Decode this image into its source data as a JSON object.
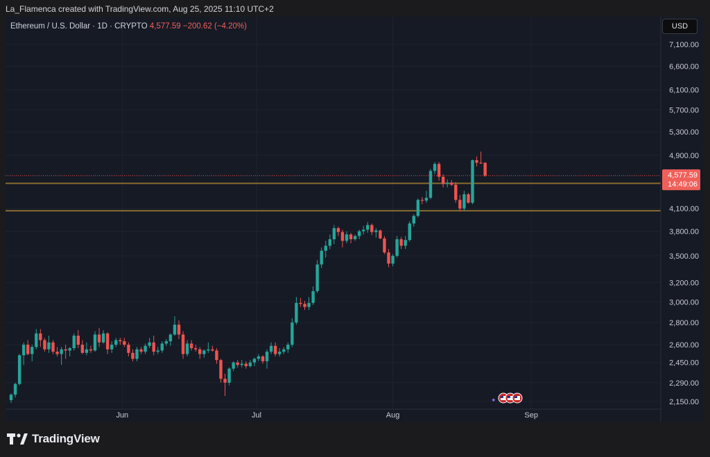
{
  "header": {
    "author_line": "La_Flamenca created with TradingView.com, Aug 25, 2025 11:10 UTC+2"
  },
  "legend": {
    "symbol": "Ethereum / U.S. Dollar · 1D · CRYPTO",
    "price": "4,577.59",
    "change": "−200.62 (−4.20%)"
  },
  "currency_button": "USD",
  "brand": {
    "name": "TradingView"
  },
  "colors": {
    "up": "#26a69a",
    "down": "#ef5350",
    "background": "#161a25",
    "level_line": "#8a6d2f",
    "price_tag": "#f0605a"
  },
  "chart_data": {
    "type": "candlestick",
    "symbol": "ETHUSD",
    "timeframe": "1D",
    "y_axis": {
      "scale": "log",
      "ticks": [
        2150,
        2290,
        2450,
        2600,
        2800,
        3000,
        3200,
        3500,
        3800,
        4100,
        4577.59,
        4900,
        5300,
        5700,
        6100,
        6600,
        7100
      ],
      "tick_labels": [
        "2,150.00",
        "2,290.00",
        "2,450.00",
        "2,600.00",
        "2,800.00",
        "3,000.00",
        "3,200.00",
        "3,500.00",
        "3,800.00",
        "4,100.00",
        "4,577.59",
        "4,900.00",
        "5,300.00",
        "5,700.00",
        "6,100.00",
        "6,600.00",
        "7,100.00"
      ]
    },
    "x_axis": {
      "labels": [
        "Jun",
        "Jul",
        "Aug",
        "Sep"
      ]
    },
    "current_price": {
      "value": 4577.59,
      "label": "4,577.59",
      "countdown": "14:49:06"
    },
    "horizontal_levels": [
      4460,
      4070
    ],
    "candles": [
      {
        "o": 2160,
        "h": 2210,
        "l": 2140,
        "c": 2200
      },
      {
        "o": 2200,
        "h": 2290,
        "l": 2180,
        "c": 2280
      },
      {
        "o": 2280,
        "h": 2520,
        "l": 2270,
        "c": 2510
      },
      {
        "o": 2510,
        "h": 2620,
        "l": 2430,
        "c": 2600
      },
      {
        "o": 2600,
        "h": 2640,
        "l": 2510,
        "c": 2520
      },
      {
        "o": 2520,
        "h": 2600,
        "l": 2460,
        "c": 2580
      },
      {
        "o": 2580,
        "h": 2740,
        "l": 2560,
        "c": 2700
      },
      {
        "o": 2700,
        "h": 2740,
        "l": 2580,
        "c": 2640
      },
      {
        "o": 2640,
        "h": 2660,
        "l": 2540,
        "c": 2560
      },
      {
        "o": 2560,
        "h": 2680,
        "l": 2530,
        "c": 2620
      },
      {
        "o": 2620,
        "h": 2640,
        "l": 2520,
        "c": 2540
      },
      {
        "o": 2540,
        "h": 2580,
        "l": 2500,
        "c": 2520
      },
      {
        "o": 2520,
        "h": 2580,
        "l": 2430,
        "c": 2560
      },
      {
        "o": 2560,
        "h": 2600,
        "l": 2480,
        "c": 2550
      },
      {
        "o": 2550,
        "h": 2580,
        "l": 2500,
        "c": 2570
      },
      {
        "o": 2570,
        "h": 2700,
        "l": 2550,
        "c": 2680
      },
      {
        "o": 2680,
        "h": 2730,
        "l": 2570,
        "c": 2600
      },
      {
        "o": 2600,
        "h": 2640,
        "l": 2520,
        "c": 2530
      },
      {
        "o": 2530,
        "h": 2620,
        "l": 2510,
        "c": 2560
      },
      {
        "o": 2560,
        "h": 2590,
        "l": 2530,
        "c": 2550
      },
      {
        "o": 2550,
        "h": 2720,
        "l": 2540,
        "c": 2690
      },
      {
        "o": 2690,
        "h": 2750,
        "l": 2580,
        "c": 2620
      },
      {
        "o": 2620,
        "h": 2730,
        "l": 2610,
        "c": 2700
      },
      {
        "o": 2700,
        "h": 2710,
        "l": 2520,
        "c": 2560
      },
      {
        "o": 2560,
        "h": 2630,
        "l": 2530,
        "c": 2600
      },
      {
        "o": 2600,
        "h": 2660,
        "l": 2580,
        "c": 2640
      },
      {
        "o": 2640,
        "h": 2660,
        "l": 2600,
        "c": 2630
      },
      {
        "o": 2630,
        "h": 2660,
        "l": 2580,
        "c": 2600
      },
      {
        "o": 2600,
        "h": 2620,
        "l": 2500,
        "c": 2530
      },
      {
        "o": 2530,
        "h": 2560,
        "l": 2460,
        "c": 2480
      },
      {
        "o": 2480,
        "h": 2580,
        "l": 2460,
        "c": 2560
      },
      {
        "o": 2560,
        "h": 2580,
        "l": 2520,
        "c": 2540
      },
      {
        "o": 2540,
        "h": 2610,
        "l": 2520,
        "c": 2590
      },
      {
        "o": 2590,
        "h": 2660,
        "l": 2570,
        "c": 2620
      },
      {
        "o": 2620,
        "h": 2680,
        "l": 2510,
        "c": 2540
      },
      {
        "o": 2540,
        "h": 2580,
        "l": 2520,
        "c": 2550
      },
      {
        "o": 2550,
        "h": 2630,
        "l": 2530,
        "c": 2610
      },
      {
        "o": 2610,
        "h": 2650,
        "l": 2590,
        "c": 2630
      },
      {
        "o": 2630,
        "h": 2700,
        "l": 2590,
        "c": 2690
      },
      {
        "o": 2690,
        "h": 2860,
        "l": 2680,
        "c": 2780
      },
      {
        "o": 2780,
        "h": 2820,
        "l": 2650,
        "c": 2690
      },
      {
        "o": 2690,
        "h": 2720,
        "l": 2480,
        "c": 2520
      },
      {
        "o": 2520,
        "h": 2640,
        "l": 2500,
        "c": 2610
      },
      {
        "o": 2610,
        "h": 2640,
        "l": 2550,
        "c": 2570
      },
      {
        "o": 2570,
        "h": 2600,
        "l": 2540,
        "c": 2560
      },
      {
        "o": 2560,
        "h": 2580,
        "l": 2480,
        "c": 2520
      },
      {
        "o": 2520,
        "h": 2560,
        "l": 2490,
        "c": 2550
      },
      {
        "o": 2550,
        "h": 2620,
        "l": 2530,
        "c": 2560
      },
      {
        "o": 2560,
        "h": 2590,
        "l": 2540,
        "c": 2550
      },
      {
        "o": 2550,
        "h": 2570,
        "l": 2440,
        "c": 2470
      },
      {
        "o": 2470,
        "h": 2480,
        "l": 2290,
        "c": 2320
      },
      {
        "o": 2320,
        "h": 2360,
        "l": 2190,
        "c": 2290
      },
      {
        "o": 2290,
        "h": 2410,
        "l": 2270,
        "c": 2400
      },
      {
        "o": 2400,
        "h": 2460,
        "l": 2380,
        "c": 2450
      },
      {
        "o": 2450,
        "h": 2470,
        "l": 2410,
        "c": 2430
      },
      {
        "o": 2430,
        "h": 2470,
        "l": 2410,
        "c": 2440
      },
      {
        "o": 2440,
        "h": 2460,
        "l": 2400,
        "c": 2420
      },
      {
        "o": 2420,
        "h": 2470,
        "l": 2410,
        "c": 2450
      },
      {
        "o": 2450,
        "h": 2490,
        "l": 2420,
        "c": 2480
      },
      {
        "o": 2480,
        "h": 2520,
        "l": 2460,
        "c": 2500
      },
      {
        "o": 2500,
        "h": 2510,
        "l": 2440,
        "c": 2460
      },
      {
        "o": 2460,
        "h": 2560,
        "l": 2400,
        "c": 2540
      },
      {
        "o": 2540,
        "h": 2620,
        "l": 2520,
        "c": 2590
      },
      {
        "o": 2590,
        "h": 2620,
        "l": 2500,
        "c": 2520
      },
      {
        "o": 2520,
        "h": 2570,
        "l": 2500,
        "c": 2540
      },
      {
        "o": 2540,
        "h": 2580,
        "l": 2520,
        "c": 2560
      },
      {
        "o": 2560,
        "h": 2620,
        "l": 2530,
        "c": 2600
      },
      {
        "o": 2600,
        "h": 2840,
        "l": 2580,
        "c": 2800
      },
      {
        "o": 2800,
        "h": 3050,
        "l": 2780,
        "c": 2990
      },
      {
        "o": 2990,
        "h": 3040,
        "l": 2950,
        "c": 2980
      },
      {
        "o": 2980,
        "h": 3010,
        "l": 2920,
        "c": 2950
      },
      {
        "o": 2950,
        "h": 3050,
        "l": 2920,
        "c": 2990
      },
      {
        "o": 2990,
        "h": 3160,
        "l": 2970,
        "c": 3110
      },
      {
        "o": 3110,
        "h": 3450,
        "l": 3090,
        "c": 3400
      },
      {
        "o": 3400,
        "h": 3600,
        "l": 3360,
        "c": 3560
      },
      {
        "o": 3560,
        "h": 3680,
        "l": 3480,
        "c": 3620
      },
      {
        "o": 3620,
        "h": 3760,
        "l": 3580,
        "c": 3700
      },
      {
        "o": 3700,
        "h": 3880,
        "l": 3640,
        "c": 3840
      },
      {
        "o": 3840,
        "h": 3860,
        "l": 3740,
        "c": 3790
      },
      {
        "o": 3790,
        "h": 3820,
        "l": 3600,
        "c": 3680
      },
      {
        "o": 3680,
        "h": 3800,
        "l": 3650,
        "c": 3760
      },
      {
        "o": 3760,
        "h": 3780,
        "l": 3650,
        "c": 3700
      },
      {
        "o": 3700,
        "h": 3760,
        "l": 3680,
        "c": 3740
      },
      {
        "o": 3740,
        "h": 3820,
        "l": 3700,
        "c": 3800
      },
      {
        "o": 3800,
        "h": 3870,
        "l": 3760,
        "c": 3820
      },
      {
        "o": 3820,
        "h": 3920,
        "l": 3780,
        "c": 3880
      },
      {
        "o": 3880,
        "h": 3900,
        "l": 3750,
        "c": 3790
      },
      {
        "o": 3790,
        "h": 3840,
        "l": 3720,
        "c": 3810
      },
      {
        "o": 3810,
        "h": 3820,
        "l": 3700,
        "c": 3710
      },
      {
        "o": 3710,
        "h": 3740,
        "l": 3520,
        "c": 3540
      },
      {
        "o": 3540,
        "h": 3580,
        "l": 3370,
        "c": 3410
      },
      {
        "o": 3410,
        "h": 3520,
        "l": 3380,
        "c": 3500
      },
      {
        "o": 3500,
        "h": 3740,
        "l": 3480,
        "c": 3700
      },
      {
        "o": 3700,
        "h": 3730,
        "l": 3580,
        "c": 3620
      },
      {
        "o": 3620,
        "h": 3740,
        "l": 3580,
        "c": 3690
      },
      {
        "o": 3690,
        "h": 3930,
        "l": 3670,
        "c": 3900
      },
      {
        "o": 3900,
        "h": 4020,
        "l": 3860,
        "c": 4000
      },
      {
        "o": 4000,
        "h": 4240,
        "l": 3980,
        "c": 4220
      },
      {
        "o": 4220,
        "h": 4260,
        "l": 4160,
        "c": 4210
      },
      {
        "o": 4210,
        "h": 4350,
        "l": 4180,
        "c": 4250
      },
      {
        "o": 4250,
        "h": 4680,
        "l": 4230,
        "c": 4650
      },
      {
        "o": 4650,
        "h": 4790,
        "l": 4600,
        "c": 4760
      },
      {
        "o": 4760,
        "h": 4790,
        "l": 4500,
        "c": 4560
      },
      {
        "o": 4560,
        "h": 4600,
        "l": 4400,
        "c": 4450
      },
      {
        "o": 4450,
        "h": 4520,
        "l": 4400,
        "c": 4470
      },
      {
        "o": 4470,
        "h": 4510,
        "l": 4420,
        "c": 4440
      },
      {
        "o": 4440,
        "h": 4480,
        "l": 4180,
        "c": 4220
      },
      {
        "o": 4220,
        "h": 4290,
        "l": 4060,
        "c": 4100
      },
      {
        "o": 4100,
        "h": 4350,
        "l": 4070,
        "c": 4300
      },
      {
        "o": 4300,
        "h": 4320,
        "l": 4170,
        "c": 4180
      },
      {
        "o": 4180,
        "h": 4830,
        "l": 4160,
        "c": 4820
      },
      {
        "o": 4820,
        "h": 4880,
        "l": 4720,
        "c": 4780
      },
      {
        "o": 4780,
        "h": 4960,
        "l": 4760,
        "c": 4778
      },
      {
        "o": 4778,
        "h": 4790,
        "l": 4560,
        "c": 4577.59
      }
    ]
  }
}
